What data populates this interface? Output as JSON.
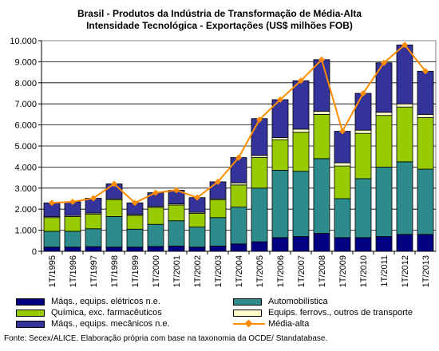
{
  "title_line1": "Brasil - Produtos da Indústria de Transformação de Média-Alta",
  "title_line2": "Intensidade Tecnológica - Exportações (US$ milhões FOB)",
  "source": "Fonte: Secex/ALICE. Elaboração própria com base na taxonomia da OCDE/ Standatabase.",
  "chart_data": {
    "type": "bar",
    "stacked": true,
    "title": "Brasil - Produtos da Indústria de Transformação de Média-Alta Intensidade Tecnológica - Exportações (US$ milhões FOB)",
    "categories": [
      "1T/1995",
      "1T/1996",
      "1T/1997",
      "1T/1998",
      "1T/1999",
      "1T/2000",
      "1T/2001",
      "1T/2002",
      "1T/2003",
      "1T/2004",
      "1T/2005",
      "1T/2006",
      "1T/2007",
      "1T/2008",
      "1T/2009",
      "1T/2010",
      "1T/2011",
      "1T/2012",
      "1T/2013"
    ],
    "ylim": [
      0,
      10000
    ],
    "yticks": [
      "0",
      "1.000",
      "2.000",
      "3.000",
      "4.000",
      "5.000",
      "6.000",
      "7.000",
      "8.000",
      "9.000",
      "10.000"
    ],
    "ytick_values": [
      0,
      1000,
      2000,
      3000,
      4000,
      5000,
      6000,
      7000,
      8000,
      9000,
      10000
    ],
    "grid": "horizontal",
    "legend_position": "bottom",
    "series": [
      {
        "name": "Máqs., equips. elétricos n.e.",
        "color": "#000080",
        "values": [
          200,
          200,
          220,
          200,
          200,
          230,
          250,
          200,
          250,
          350,
          450,
          650,
          700,
          850,
          650,
          650,
          700,
          800,
          800
        ]
      },
      {
        "name": "Automobilística",
        "color": "#2e8b8b",
        "values": [
          750,
          750,
          850,
          1450,
          850,
          1050,
          1200,
          950,
          1350,
          1750,
          2550,
          3200,
          3100,
          3550,
          1850,
          2800,
          3300,
          3450,
          3100
        ]
      },
      {
        "name": "Química, exc. farmacêuticos",
        "color": "#99cc00",
        "values": [
          650,
          700,
          700,
          800,
          650,
          800,
          750,
          650,
          850,
          1050,
          1450,
          1450,
          1850,
          2100,
          1550,
          2150,
          2450,
          2600,
          2450
        ]
      },
      {
        "name": "Equips. ferrovs., outros de transporte",
        "color": "#ffffcc",
        "values": [
          50,
          50,
          50,
          50,
          50,
          50,
          50,
          50,
          50,
          100,
          100,
          100,
          150,
          150,
          150,
          150,
          150,
          150,
          150
        ]
      },
      {
        "name": "Máqs., equips. mecânicos n.e.",
        "color": "#333399",
        "values": [
          650,
          650,
          700,
          700,
          550,
          650,
          650,
          700,
          800,
          1200,
          1750,
          1800,
          2300,
          2450,
          1500,
          1750,
          2350,
          2800,
          2050
        ]
      }
    ],
    "line": {
      "name": "Média-alta",
      "color": "#ff8c00",
      "values": [
        2300,
        2350,
        2520,
        3200,
        2300,
        2780,
        2900,
        2550,
        3300,
        4450,
        6250,
        7200,
        8100,
        9100,
        5700,
        7500,
        8950,
        9800,
        8550
      ]
    }
  }
}
